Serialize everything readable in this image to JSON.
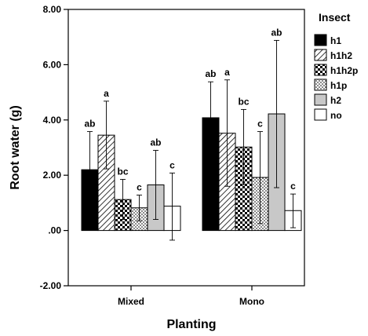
{
  "chart_data": {
    "type": "bar",
    "xlabel": "Planting",
    "ylabel": "Root water (g)",
    "ylim": [
      -2,
      8
    ],
    "yticks": [
      -2,
      0,
      2,
      4,
      6,
      8
    ],
    "ytick_labels": [
      "-2.00",
      ".00",
      "2.00",
      "4.00",
      "6.00",
      "8.00"
    ],
    "categories": [
      "Mixed",
      "Mono"
    ],
    "legend_title": "Insect",
    "legend_position": "right",
    "grid": false,
    "series": [
      {
        "name": "h1",
        "pattern": "solid-black",
        "values": [
          2.2,
          4.08
        ],
        "err_low": [
          0.83,
          2.78
        ],
        "err_high": [
          3.58,
          5.38
        ],
        "labels": [
          "ab",
          "ab"
        ]
      },
      {
        "name": "h1h2",
        "pattern": "diagonal",
        "values": [
          3.45,
          3.52
        ],
        "err_low": [
          2.23,
          1.6
        ],
        "err_high": [
          4.68,
          5.45
        ],
        "labels": [
          "a",
          "a"
        ]
      },
      {
        "name": "h1h2p",
        "pattern": "checker",
        "values": [
          1.12,
          3.02
        ],
        "err_low": [
          0.4,
          1.65
        ],
        "err_high": [
          1.85,
          4.38
        ],
        "labels": [
          "bc",
          "bc"
        ]
      },
      {
        "name": "h1p",
        "pattern": "dots",
        "values": [
          0.82,
          1.92
        ],
        "err_low": [
          0.35,
          0.25
        ],
        "err_high": [
          1.28,
          3.58
        ],
        "labels": [
          "c",
          "c"
        ]
      },
      {
        "name": "h2",
        "pattern": "solid-gray",
        "values": [
          1.65,
          4.22
        ],
        "err_low": [
          0.4,
          1.55
        ],
        "err_high": [
          2.9,
          6.88
        ],
        "labels": [
          "ab",
          "ab"
        ]
      },
      {
        "name": "no",
        "pattern": "white",
        "values": [
          0.88,
          0.72
        ],
        "err_low": [
          -0.35,
          0.1
        ],
        "err_high": [
          2.08,
          1.32
        ],
        "labels": [
          "c",
          "c"
        ]
      }
    ],
    "colors": {
      "black": "#000000",
      "gray": "#c8c8c8",
      "white": "#ffffff"
    }
  }
}
